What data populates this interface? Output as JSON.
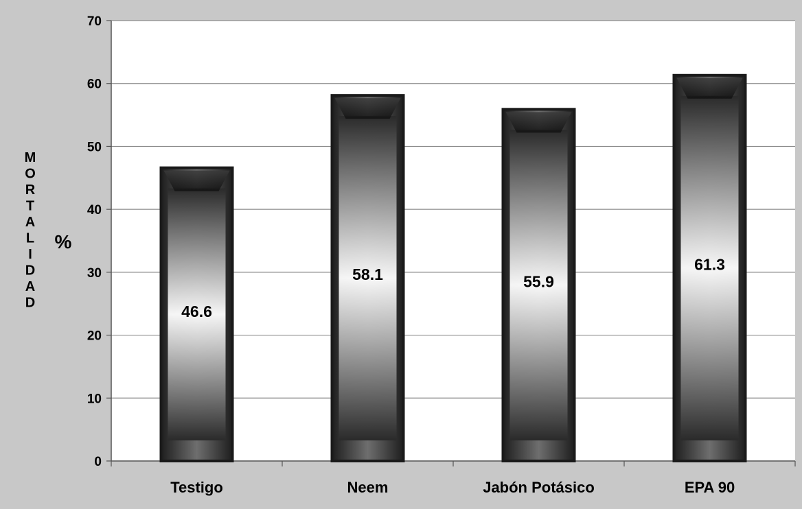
{
  "chart_data": {
    "type": "bar",
    "categories": [
      "Testigo",
      "Neem",
      "Jabón Potásico",
      "EPA 90"
    ],
    "values": [
      46.6,
      58.1,
      55.9,
      61.3
    ],
    "data_labels": [
      "46.6",
      "58.1",
      "55.9",
      "61.3"
    ],
    "title": "",
    "xlabel": "",
    "ylabel": "MORTALIDAD",
    "ylabel_unit": "%",
    "ylim": [
      0,
      70
    ],
    "yticks": [
      0,
      10,
      20,
      30,
      40,
      50,
      60,
      70
    ],
    "grid": true,
    "legend": "none",
    "colors": {
      "frame_background": "#c8c8c8",
      "plot_background": "#ffffff",
      "gridline": "#8c8c8c",
      "bar_edge": "#1a1a1a",
      "bar_center": "#ffffff",
      "bar_dark": "#2a2a2a"
    }
  }
}
